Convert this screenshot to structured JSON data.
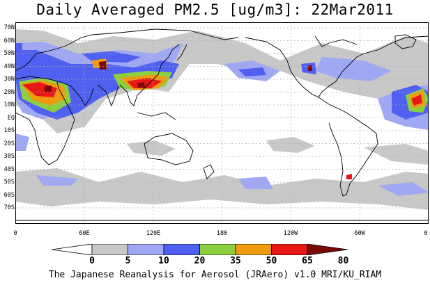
{
  "title": "Daily Averaged PM2.5 [ug/m3]: 22Mar2011",
  "footer": "The Japanese Reanalysis for Aerosol (JRAero) v1.0 MRI/KU_RIAM",
  "lat_labels": [
    "70N",
    "60N",
    "50N",
    "40N",
    "30N",
    "20N",
    "10N",
    "EQ",
    "10S",
    "20S",
    "30S",
    "40S",
    "50S",
    "60S",
    "70S"
  ],
  "lon_labels": [
    "0",
    "60E",
    "120E",
    "180",
    "120W",
    "60W",
    "0"
  ],
  "colorbar": {
    "labels": [
      "0",
      "5",
      "10",
      "20",
      "35",
      "50",
      "65",
      "80"
    ],
    "colors": [
      "#ffffff",
      "#c8c8c8",
      "#a0a8f4",
      "#5060f0",
      "#8cd040",
      "#f09a10",
      "#e81818",
      "#7a0a0a"
    ]
  },
  "colors": {
    "land_outline": "#000000",
    "grid": "#b0b0b0",
    "frame": "#000000"
  }
}
